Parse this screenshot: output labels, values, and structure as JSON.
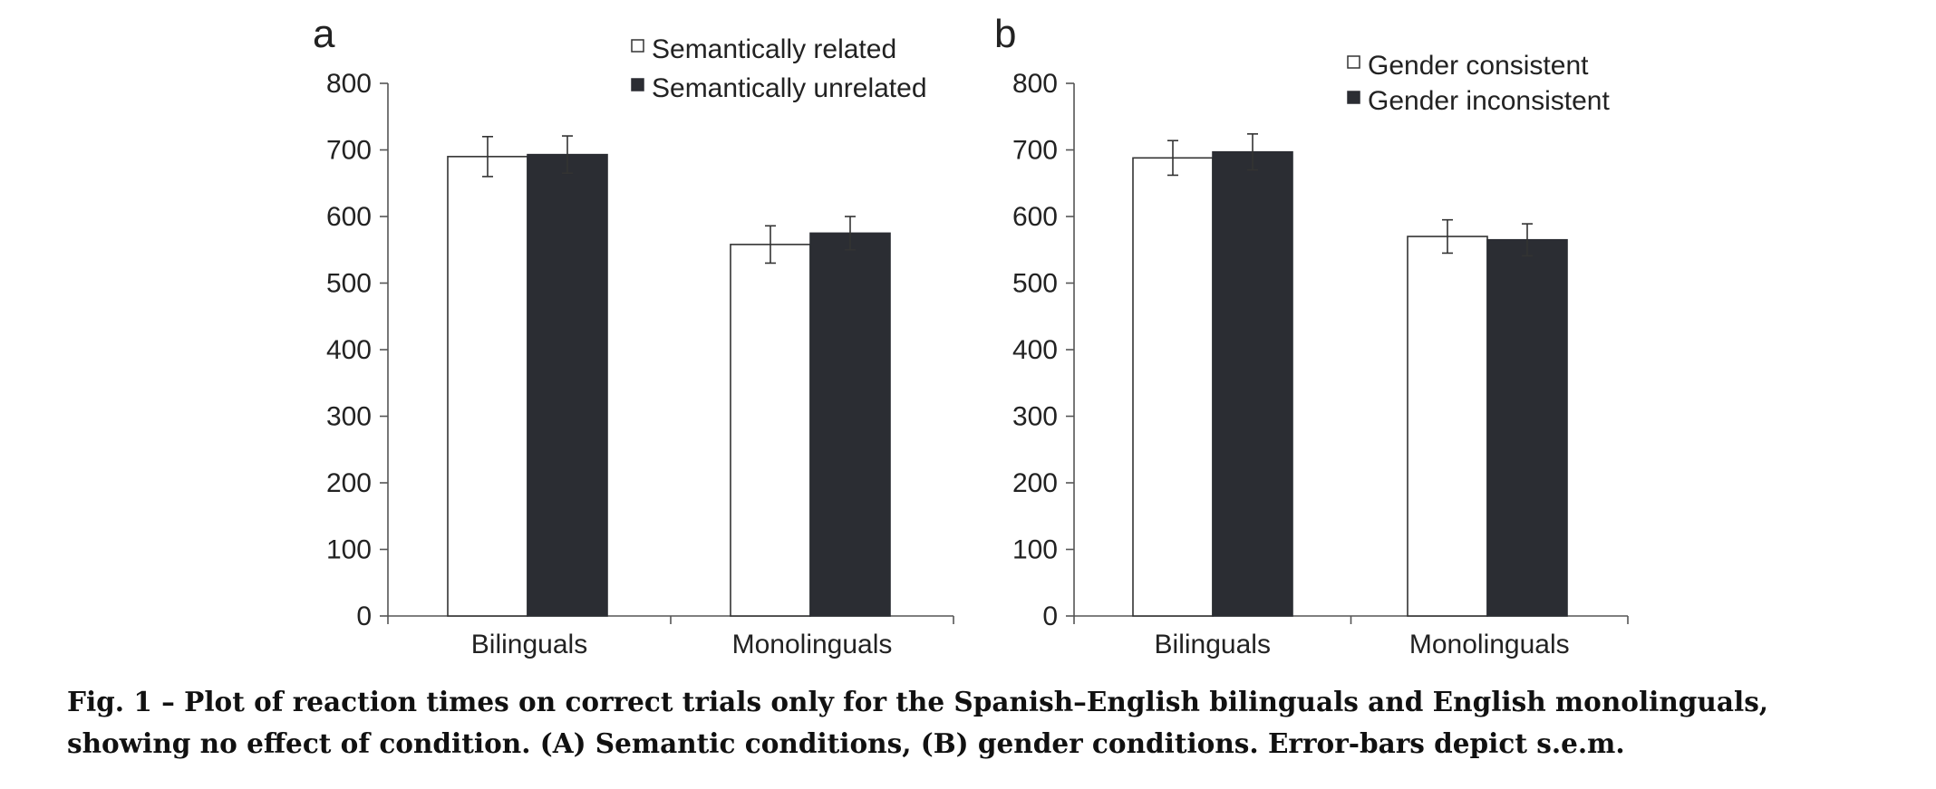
{
  "caption": "Fig. 1 – Plot of reaction times on correct trials only for the Spanish–English bilinguals and English monolinguals, showing no effect of condition. (A) Semantic conditions, (B) gender conditions. Error-bars depict s.e.m.",
  "colors": {
    "dark": "#2b2d33",
    "light": "#ffffff",
    "axis": "#555555"
  },
  "chart_data": [
    {
      "type": "bar",
      "panel_label": "a",
      "title": "",
      "xlabel": "",
      "ylabel": "",
      "categories": [
        "Bilinguals",
        "Monolinguals"
      ],
      "series": [
        {
          "name": "Semantically related",
          "values": [
            690,
            558
          ],
          "errors": [
            30,
            28
          ]
        },
        {
          "name": "Semantically unrelated",
          "values": [
            693,
            575
          ],
          "errors": [
            28,
            25
          ]
        }
      ],
      "ylim": [
        0,
        800
      ],
      "yticks": [
        0,
        100,
        200,
        300,
        400,
        500,
        600,
        700,
        800
      ],
      "grid": false,
      "legend_position": "top-right"
    },
    {
      "type": "bar",
      "panel_label": "b",
      "title": "",
      "xlabel": "",
      "ylabel": "",
      "categories": [
        "Bilinguals",
        "Monolinguals"
      ],
      "series": [
        {
          "name": "Gender consistent",
          "values": [
            688,
            570
          ],
          "errors": [
            26,
            25
          ]
        },
        {
          "name": "Gender inconsistent",
          "values": [
            697,
            565
          ],
          "errors": [
            27,
            24
          ]
        }
      ],
      "ylim": [
        0,
        800
      ],
      "yticks": [
        0,
        100,
        200,
        300,
        400,
        500,
        600,
        700,
        800
      ],
      "grid": false,
      "legend_position": "top-right"
    }
  ]
}
